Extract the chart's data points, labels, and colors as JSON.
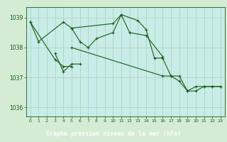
{
  "background_color": "#d4ecd4",
  "plot_bg_color": "#c8ece8",
  "line_color": "#1a5c1a",
  "grid_color": "#a8c8a8",
  "label_bar_color": "#2d6e2d",
  "xlabel": "Graphe pression niveau de la mer (hPa)",
  "ylim": [
    1035.7,
    1039.35
  ],
  "xlim": [
    -0.5,
    23.5
  ],
  "x_ticks": [
    0,
    1,
    2,
    3,
    4,
    5,
    6,
    7,
    8,
    9,
    10,
    11,
    12,
    13,
    14,
    15,
    16,
    17,
    18,
    19,
    20,
    21,
    22,
    23
  ],
  "y_ticks": [
    1036,
    1037,
    1038,
    1039
  ],
  "series": [
    {
      "x": [
        0,
        1,
        4,
        5,
        6,
        7,
        8,
        10,
        11,
        12,
        14,
        16
      ],
      "y": [
        1038.85,
        1038.2,
        1038.85,
        1038.65,
        1038.2,
        1038.0,
        1038.3,
        1038.5,
        1039.1,
        1038.5,
        1038.4,
        1037.7
      ]
    },
    {
      "x": [
        3,
        4,
        5,
        6
      ],
      "y": [
        1037.8,
        1037.2,
        1037.45,
        1037.45
      ]
    },
    {
      "x": [
        0,
        3,
        4,
        5
      ],
      "y": [
        1038.85,
        1037.6,
        1037.37,
        1037.37
      ]
    },
    {
      "x": [
        5,
        10,
        11,
        13,
        14,
        15,
        16,
        17,
        18,
        19,
        20,
        21,
        22,
        23
      ],
      "y": [
        1038.65,
        1038.8,
        1039.1,
        1038.9,
        1038.6,
        1037.65,
        1037.65,
        1037.05,
        1037.05,
        1036.55,
        1036.7,
        1036.7,
        1036.7,
        1036.7
      ]
    },
    {
      "x": [
        5,
        16,
        17,
        18,
        19,
        20,
        21,
        22,
        23
      ],
      "y": [
        1038.0,
        1037.05,
        1037.05,
        1036.88,
        1036.55,
        1036.55,
        1036.7,
        1036.7,
        1036.7
      ]
    }
  ]
}
